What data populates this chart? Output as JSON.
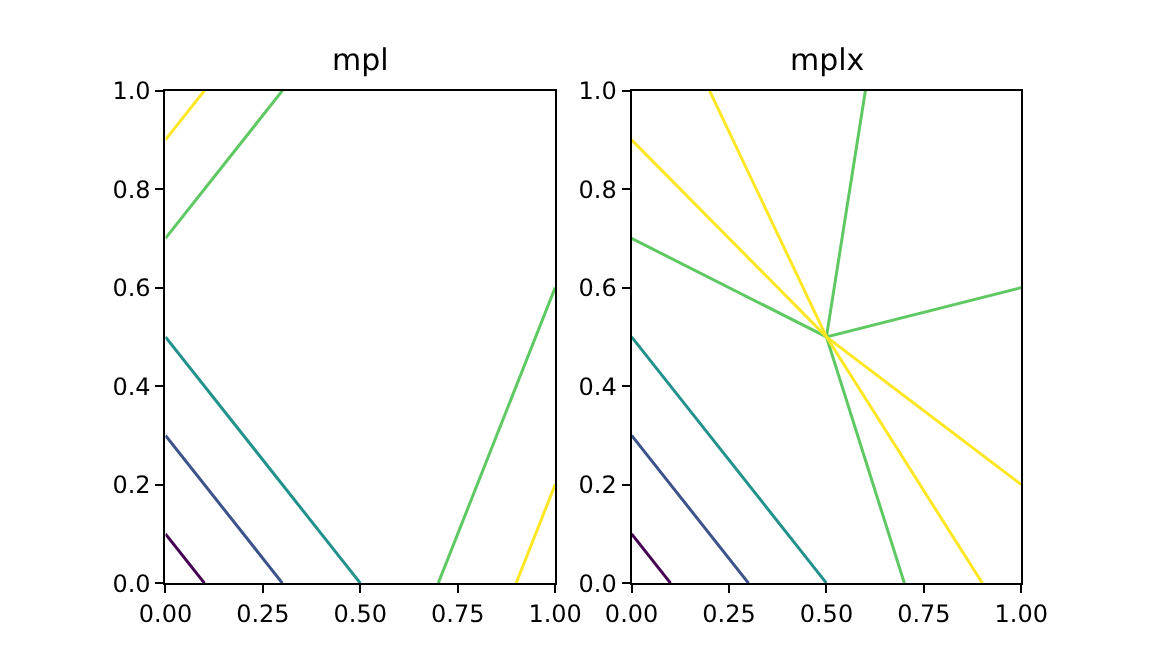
{
  "chart_data": [
    {
      "type": "line",
      "title": "mpl",
      "xlim": [
        0,
        1
      ],
      "ylim": [
        0,
        1
      ],
      "line_style": "solid",
      "marker": "none",
      "xticks": [
        {
          "value": 0,
          "label": "0.00"
        },
        {
          "value": 0.25,
          "label": "0.25"
        },
        {
          "value": 0.5,
          "label": "0.50"
        },
        {
          "value": 0.75,
          "label": "0.75"
        },
        {
          "value": 1,
          "label": "1.00"
        }
      ],
      "yticks": [
        {
          "value": 0,
          "label": "0.0"
        },
        {
          "value": 0.2,
          "label": "0.2"
        },
        {
          "value": 0.4,
          "label": "0.4"
        },
        {
          "value": 0.6,
          "label": "0.6"
        },
        {
          "value": 0.8,
          "label": "0.8"
        },
        {
          "value": 1,
          "label": "1.0"
        }
      ],
      "series": [
        {
          "color": "#440154",
          "x": [
            0,
            0.1
          ],
          "values": [
            0.1,
            0
          ]
        },
        {
          "color": "#3b528b",
          "x": [
            0,
            0.3
          ],
          "values": [
            0.3,
            0
          ]
        },
        {
          "color": "#21918c",
          "x": [
            0,
            0.5
          ],
          "values": [
            0.5,
            0
          ]
        },
        {
          "color": "#5ec962",
          "x": [
            0,
            0.3
          ],
          "values": [
            0.7,
            1
          ]
        },
        {
          "color": "#5ec962",
          "x": [
            0.7,
            1
          ],
          "values": [
            0,
            0.6
          ]
        },
        {
          "color": "#fde725",
          "x": [
            0,
            0.1
          ],
          "values": [
            0.9,
            1
          ]
        },
        {
          "color": "#fde725",
          "x": [
            0.9,
            1
          ],
          "values": [
            0,
            0.2
          ]
        }
      ]
    },
    {
      "type": "line",
      "title": "mplx",
      "xlim": [
        0,
        1
      ],
      "ylim": [
        0,
        1
      ],
      "line_style": "solid",
      "marker": "none",
      "xticks": [
        {
          "value": 0,
          "label": "0.00"
        },
        {
          "value": 0.25,
          "label": "0.25"
        },
        {
          "value": 0.5,
          "label": "0.50"
        },
        {
          "value": 0.75,
          "label": "0.75"
        },
        {
          "value": 1,
          "label": "1.00"
        }
      ],
      "yticks": [
        {
          "value": 0,
          "label": "0.0"
        },
        {
          "value": 0.2,
          "label": "0.2"
        },
        {
          "value": 0.4,
          "label": "0.4"
        },
        {
          "value": 0.6,
          "label": "0.6"
        },
        {
          "value": 0.8,
          "label": "0.8"
        },
        {
          "value": 1,
          "label": "1.0"
        }
      ],
      "series": [
        {
          "color": "#440154",
          "x": [
            0,
            0.1
          ],
          "values": [
            0.1,
            0
          ]
        },
        {
          "color": "#3b528b",
          "x": [
            0,
            0.3
          ],
          "values": [
            0.3,
            0
          ]
        },
        {
          "color": "#21918c",
          "x": [
            0,
            0.5
          ],
          "values": [
            0.5,
            0
          ]
        },
        {
          "color": "#5ec962",
          "x": [
            0,
            0.5,
            1
          ],
          "values": [
            0.7,
            0.5,
            0.6
          ]
        },
        {
          "color": "#5ec962",
          "x": [
            0.6,
            0.5,
            0.7
          ],
          "values": [
            1,
            0.5,
            0
          ]
        },
        {
          "color": "#fde725",
          "x": [
            0,
            0.5,
            1
          ],
          "values": [
            0.9,
            0.5,
            0.2
          ]
        },
        {
          "color": "#fde725",
          "x": [
            0.2,
            0.5,
            0.9
          ],
          "values": [
            1,
            0.5,
            0
          ]
        }
      ]
    }
  ]
}
